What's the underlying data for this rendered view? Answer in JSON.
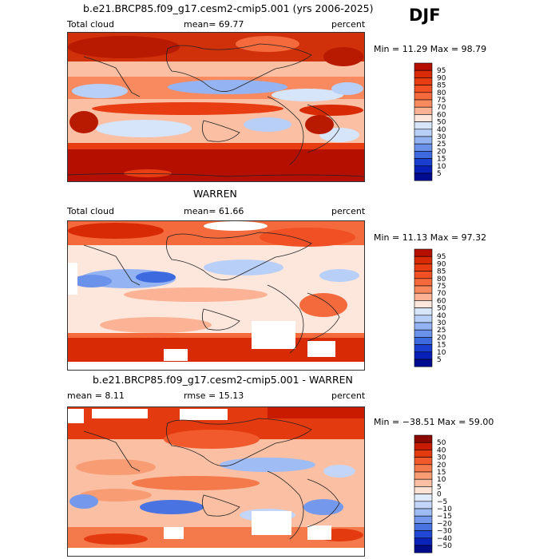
{
  "season": "DJF",
  "panels": [
    {
      "title": "b.e21.BRCP85.f09_g17.cesm2-cmip5.001 (yrs 2006-2025)",
      "left_label": "Total cloud",
      "center_label": "mean=  69.77",
      "right_label": "percent",
      "minmax": "Min =  11.29 Max =  98.79",
      "colorbar_ticks": [
        "95",
        "90",
        "85",
        "80",
        "75",
        "70",
        "60",
        "50",
        "40",
        "30",
        "25",
        "20",
        "15",
        "10",
        "5"
      ],
      "colorbar_colors": [
        "#b50f00",
        "#d82a04",
        "#e83d13",
        "#f05023",
        "#f46a3c",
        "#f98a5f",
        "#fcb294",
        "#fde6dc",
        "#d7e5fb",
        "#b8cff8",
        "#94b3f2",
        "#6b92ea",
        "#3e6ae0",
        "#1a3ed0",
        "#0920b8",
        "#000c90"
      ]
    },
    {
      "title": "WARREN",
      "left_label": "Total cloud",
      "center_label": "mean=  61.66",
      "right_label": "percent",
      "minmax": "Min =  11.13 Max =  97.32",
      "colorbar_ticks": [
        "95",
        "90",
        "85",
        "80",
        "75",
        "70",
        "60",
        "50",
        "40",
        "30",
        "25",
        "20",
        "15",
        "10",
        "5"
      ],
      "colorbar_colors": [
        "#b50f00",
        "#d82a04",
        "#e83d13",
        "#f05023",
        "#f46a3c",
        "#f98a5f",
        "#fcb294",
        "#fde6dc",
        "#d7e5fb",
        "#b8cff8",
        "#94b3f2",
        "#6b92ea",
        "#3e6ae0",
        "#1a3ed0",
        "#0920b8",
        "#000c90"
      ]
    },
    {
      "title": "b.e21.BRCP85.f09_g17.cesm2-cmip5.001 - WARREN",
      "left_label": "mean =   8.11",
      "center_label": "rmse =  15.13",
      "right_label": "percent",
      "minmax": "Min = −38.51 Max =  59.00",
      "colorbar_ticks": [
        "50",
        "40",
        "30",
        "20",
        "15",
        "10",
        "5",
        "0",
        "−5",
        "−10",
        "−15",
        "−20",
        "−30",
        "−40",
        "−50"
      ],
      "colorbar_colors": [
        "#8b0a00",
        "#c81b00",
        "#e43a10",
        "#f15a2c",
        "#f47a4c",
        "#f89c74",
        "#fbbfa3",
        "#fde1d4",
        "#dfeafc",
        "#c3d6f9",
        "#9fbcf4",
        "#7499ec",
        "#4a73e2",
        "#2148d4",
        "#0a24ba",
        "#000c8a"
      ]
    }
  ]
}
